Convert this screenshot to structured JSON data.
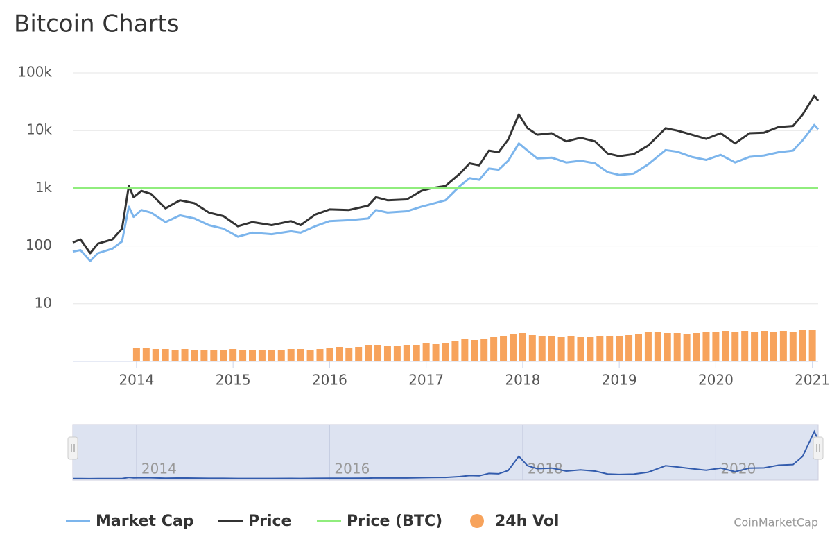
{
  "chart_data": {
    "type": "line",
    "title": "Bitcoin Charts",
    "credit": "CoinMarketCap",
    "log_y": true,
    "grid": true,
    "legend": "bottom",
    "xlim": [
      2013.34,
      2021.06
    ],
    "xticks": [
      2014,
      2015,
      2016,
      2017,
      2018,
      2019,
      2020,
      2021
    ],
    "ylim": [
      1,
      100000
    ],
    "yticks": [
      10,
      100,
      {
        "value": 1000,
        "label": "1k"
      },
      {
        "value": 10000,
        "label": "10k"
      },
      {
        "value": 100000,
        "label": "100k"
      }
    ],
    "x": [
      2013.34,
      2013.42,
      2013.52,
      2013.6,
      2013.75,
      2013.85,
      2013.92,
      2013.97,
      2014.05,
      2014.15,
      2014.3,
      2014.45,
      2014.6,
      2014.75,
      2014.9,
      2015.05,
      2015.2,
      2015.4,
      2015.6,
      2015.7,
      2015.85,
      2016.0,
      2016.2,
      2016.4,
      2016.48,
      2016.6,
      2016.8,
      2016.95,
      2017.05,
      2017.2,
      2017.35,
      2017.45,
      2017.55,
      2017.65,
      2017.75,
      2017.85,
      2017.96,
      2018.05,
      2018.15,
      2018.3,
      2018.45,
      2018.6,
      2018.75,
      2018.88,
      2019.0,
      2019.15,
      2019.3,
      2019.48,
      2019.6,
      2019.75,
      2019.9,
      2020.05,
      2020.2,
      2020.35,
      2020.5,
      2020.65,
      2020.8,
      2020.9,
      2021.02,
      2021.06
    ],
    "series": [
      {
        "name": "Market Cap",
        "color": "#7cb5ec",
        "values": [
          80,
          85,
          55,
          75,
          90,
          120,
          480,
          320,
          420,
          380,
          260,
          340,
          300,
          230,
          200,
          145,
          170,
          160,
          180,
          170,
          220,
          270,
          280,
          300,
          420,
          380,
          400,
          480,
          530,
          620,
          1100,
          1500,
          1400,
          2200,
          2100,
          3000,
          6000,
          4500,
          3300,
          3400,
          2800,
          3000,
          2700,
          1900,
          1700,
          1800,
          2600,
          4600,
          4300,
          3500,
          3100,
          3800,
          2800,
          3500,
          3700,
          4200,
          4500,
          6800,
          12500,
          10500
        ]
      },
      {
        "name": "Price",
        "color": "#333333",
        "values": [
          115,
          130,
          75,
          110,
          130,
          200,
          1100,
          700,
          900,
          800,
          450,
          620,
          550,
          380,
          330,
          220,
          260,
          230,
          270,
          230,
          350,
          430,
          420,
          500,
          700,
          620,
          640,
          900,
          1000,
          1100,
          1800,
          2700,
          2500,
          4500,
          4200,
          7000,
          19000,
          11000,
          8500,
          9000,
          6500,
          7500,
          6500,
          4000,
          3600,
          3900,
          5500,
          11000,
          10000,
          8500,
          7200,
          9000,
          6000,
          9000,
          9200,
          11500,
          12000,
          19000,
          40000,
          33000
        ]
      },
      {
        "name": "Price (BTC)",
        "color": "#90ed7d",
        "x": [
          2013.34,
          2021.06
        ],
        "values": [
          1000,
          1000
        ]
      },
      {
        "name": "24h Vol",
        "color": "#f7a35c",
        "type": "bar",
        "x": [
          2014.0,
          2014.1,
          2014.2,
          2014.3,
          2014.4,
          2014.5,
          2014.6,
          2014.7,
          2014.8,
          2014.9,
          2015.0,
          2015.1,
          2015.2,
          2015.3,
          2015.4,
          2015.5,
          2015.6,
          2015.7,
          2015.8,
          2015.9,
          2016.0,
          2016.1,
          2016.2,
          2016.3,
          2016.4,
          2016.5,
          2016.6,
          2016.7,
          2016.8,
          2016.9,
          2017.0,
          2017.1,
          2017.2,
          2017.3,
          2017.4,
          2017.5,
          2017.6,
          2017.7,
          2017.8,
          2017.9,
          2018.0,
          2018.1,
          2018.2,
          2018.3,
          2018.4,
          2018.5,
          2018.6,
          2018.7,
          2018.8,
          2018.9,
          2019.0,
          2019.1,
          2019.2,
          2019.3,
          2019.4,
          2019.5,
          2019.6,
          2019.7,
          2019.8,
          2019.9,
          2020.0,
          2020.1,
          2020.2,
          2020.3,
          2020.4,
          2020.5,
          2020.6,
          2020.7,
          2020.8,
          2020.9,
          2021.0
        ],
        "values": [
          20,
          19,
          18,
          18,
          17,
          18,
          17,
          17,
          16,
          17,
          18,
          17,
          17,
          16,
          17,
          17,
          18,
          18,
          17,
          18,
          20,
          21,
          20,
          21,
          23,
          24,
          22,
          22,
          23,
          24,
          26,
          25,
          27,
          30,
          32,
          31,
          33,
          35,
          36,
          39,
          41,
          38,
          36,
          36,
          35,
          36,
          35,
          35,
          36,
          36,
          37,
          38,
          40,
          42,
          42,
          41,
          41,
          40,
          41,
          42,
          43,
          44,
          43,
          44,
          42,
          44,
          43,
          44,
          43,
          45,
          45
        ]
      }
    ],
    "navigator": {
      "xticks": [
        2014,
        2016,
        2018,
        2020
      ]
    }
  }
}
